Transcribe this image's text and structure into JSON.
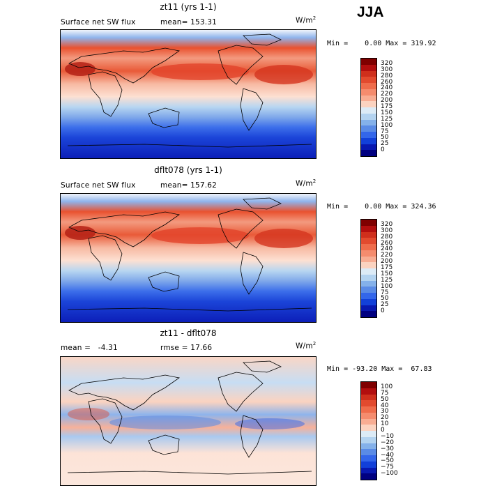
{
  "season": "JJA",
  "units": {
    "base": "W/m",
    "exp": "2"
  },
  "chart_data": [
    {
      "type": "heatmap",
      "title": "zt11 (yrs 1-1)",
      "left_label": "Surface net SW flux",
      "stat_label": "mean=",
      "stat_value": "153.31",
      "min": "0.00",
      "max": "319.92",
      "minmax_text": "Min =    0.00 Max = 319.92",
      "colorbar": {
        "levels": [
          "320",
          "300",
          "280",
          "260",
          "240",
          "220",
          "200",
          "175",
          "150",
          "125",
          "100",
          "75",
          "50",
          "25",
          "0"
        ],
        "colors": [
          "#7f0000",
          "#b20e0e",
          "#cf2f1c",
          "#e24a2e",
          "#ef6c4b",
          "#f58c6e",
          "#f8ad93",
          "#fbd3c0",
          "#dcebf6",
          "#b3d3f0",
          "#84b1ea",
          "#5a8be6",
          "#3366ea",
          "#1240d9",
          "#0818b0",
          "#000080"
        ]
      }
    },
    {
      "type": "heatmap",
      "title": "dflt078 (yrs 1-1)",
      "left_label": "Surface net SW flux",
      "stat_label": "mean=",
      "stat_value": "157.62",
      "min": "0.00",
      "max": "324.36",
      "minmax_text": "Min =    0.00 Max = 324.36",
      "colorbar": {
        "levels": [
          "320",
          "300",
          "280",
          "260",
          "240",
          "220",
          "200",
          "175",
          "150",
          "125",
          "100",
          "75",
          "50",
          "25",
          "0"
        ],
        "colors": [
          "#7f0000",
          "#b20e0e",
          "#cf2f1c",
          "#e24a2e",
          "#ef6c4b",
          "#f58c6e",
          "#f8ad93",
          "#fbd3c0",
          "#dcebf6",
          "#b3d3f0",
          "#84b1ea",
          "#5a8be6",
          "#3366ea",
          "#1240d9",
          "#0818b0",
          "#000080"
        ]
      }
    },
    {
      "type": "heatmap",
      "title": "zt11 - dflt078",
      "left_label": "mean =   -4.31",
      "stat_label": "rmse =",
      "stat_value": "17.66",
      "min": "-93.20",
      "max": "67.83",
      "minmax_text": "Min = -93.20 Max =  67.83",
      "colorbar": {
        "levels": [
          "100",
          "75",
          "50",
          "40",
          "30",
          "20",
          "10",
          "0",
          "−10",
          "−20",
          "−30",
          "−40",
          "−50",
          "−75",
          "−100"
        ],
        "colors": [
          "#7f0000",
          "#b20e0e",
          "#cf2f1c",
          "#e24a2e",
          "#ef6c4b",
          "#f58c6e",
          "#f8ad93",
          "#fbd3c0",
          "#dcebf6",
          "#b3d3f0",
          "#84b1ea",
          "#5a8be6",
          "#3366ea",
          "#1240d9",
          "#0818b0",
          "#000080"
        ]
      }
    }
  ]
}
